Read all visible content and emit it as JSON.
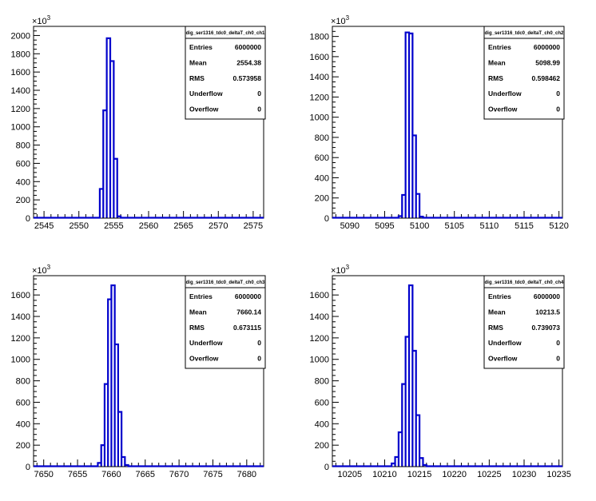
{
  "exponent_label": {
    "base": "×10",
    "exp": "3"
  },
  "colors": {
    "histogram_line": "#0000cc",
    "axis": "#000000",
    "background": "#ffffff"
  },
  "stats_labels": {
    "entries": "Entries",
    "mean": "Mean",
    "rms": "RMS",
    "underflow": "Underflow",
    "overflow": "Overflow"
  },
  "chart_data": [
    {
      "type": "histogram",
      "title": "dig_ser1316_tdc0_deltaT_ch0_ch1",
      "xlim": [
        2543.5,
        2576.5
      ],
      "ylim": [
        0,
        2100
      ],
      "x_ticks": [
        2545,
        2550,
        2555,
        2560,
        2565,
        2570,
        2575
      ],
      "y_ticks": [
        0,
        200,
        400,
        600,
        800,
        1000,
        1200,
        1400,
        1600,
        1800,
        2000
      ],
      "bin_width": 0.5,
      "bins": [
        {
          "x": 2553.0,
          "y": 320
        },
        {
          "x": 2553.5,
          "y": 1180
        },
        {
          "x": 2554.0,
          "y": 1970
        },
        {
          "x": 2554.5,
          "y": 1720
        },
        {
          "x": 2555.0,
          "y": 650
        },
        {
          "x": 2555.5,
          "y": 20
        }
      ],
      "stats": {
        "entries": "6000000",
        "mean": "2554.38",
        "rms": "0.573958",
        "underflow": "0",
        "overflow": "0"
      }
    },
    {
      "type": "histogram",
      "title": "dig_ser1316_tdc0_deltaT_ch0_ch2",
      "xlim": [
        5087.5,
        5120.5
      ],
      "ylim": [
        0,
        1900
      ],
      "x_ticks": [
        5090,
        5095,
        5100,
        5105,
        5110,
        5115,
        5120
      ],
      "y_ticks": [
        0,
        200,
        400,
        600,
        800,
        1000,
        1200,
        1400,
        1600,
        1800
      ],
      "bin_width": 0.5,
      "bins": [
        {
          "x": 5097.0,
          "y": 20
        },
        {
          "x": 5097.5,
          "y": 230
        },
        {
          "x": 5098.0,
          "y": 1840
        },
        {
          "x": 5098.5,
          "y": 1830
        },
        {
          "x": 5099.0,
          "y": 820
        },
        {
          "x": 5099.5,
          "y": 240
        },
        {
          "x": 5100.0,
          "y": 15
        }
      ],
      "stats": {
        "entries": "6000000",
        "mean": "5098.99",
        "rms": "0.598462",
        "underflow": "0",
        "overflow": "0"
      }
    },
    {
      "type": "histogram",
      "title": "dig_ser1316_tdc0_deltaT_ch0_ch3",
      "xlim": [
        7648.5,
        7682.5
      ],
      "ylim": [
        0,
        1780
      ],
      "x_ticks": [
        7650,
        7655,
        7660,
        7665,
        7670,
        7675,
        7680
      ],
      "y_ticks": [
        0,
        200,
        400,
        600,
        800,
        1000,
        1200,
        1400,
        1600
      ],
      "bin_width": 0.5,
      "bins": [
        {
          "x": 7658.0,
          "y": 35
        },
        {
          "x": 7658.5,
          "y": 200
        },
        {
          "x": 7659.0,
          "y": 770
        },
        {
          "x": 7659.5,
          "y": 1560
        },
        {
          "x": 7660.0,
          "y": 1690
        },
        {
          "x": 7660.5,
          "y": 1140
        },
        {
          "x": 7661.0,
          "y": 510
        },
        {
          "x": 7661.5,
          "y": 90
        },
        {
          "x": 7662.0,
          "y": 15
        }
      ],
      "stats": {
        "entries": "6000000",
        "mean": "7660.14",
        "rms": "0.673115",
        "underflow": "0",
        "overflow": "0"
      }
    },
    {
      "type": "histogram",
      "title": "dig_ser1316_tdc0_deltaT_ch0_ch4",
      "xlim": [
        10202.5,
        10235.5
      ],
      "ylim": [
        0,
        1780
      ],
      "x_ticks": [
        10205,
        10210,
        10215,
        10220,
        10225,
        10230,
        10235
      ],
      "y_ticks": [
        0,
        200,
        400,
        600,
        800,
        1000,
        1200,
        1400,
        1600
      ],
      "bin_width": 0.5,
      "bins": [
        {
          "x": 10211.0,
          "y": 30
        },
        {
          "x": 10211.5,
          "y": 90
        },
        {
          "x": 10212.0,
          "y": 320
        },
        {
          "x": 10212.5,
          "y": 770
        },
        {
          "x": 10213.0,
          "y": 1210
        },
        {
          "x": 10213.5,
          "y": 1690
        },
        {
          "x": 10214.0,
          "y": 1080
        },
        {
          "x": 10214.5,
          "y": 480
        },
        {
          "x": 10215.0,
          "y": 80
        },
        {
          "x": 10215.5,
          "y": 15
        }
      ],
      "stats": {
        "entries": "6000000",
        "mean": "10213.5",
        "rms": "0.739073",
        "underflow": "0",
        "overflow": "0"
      }
    }
  ]
}
